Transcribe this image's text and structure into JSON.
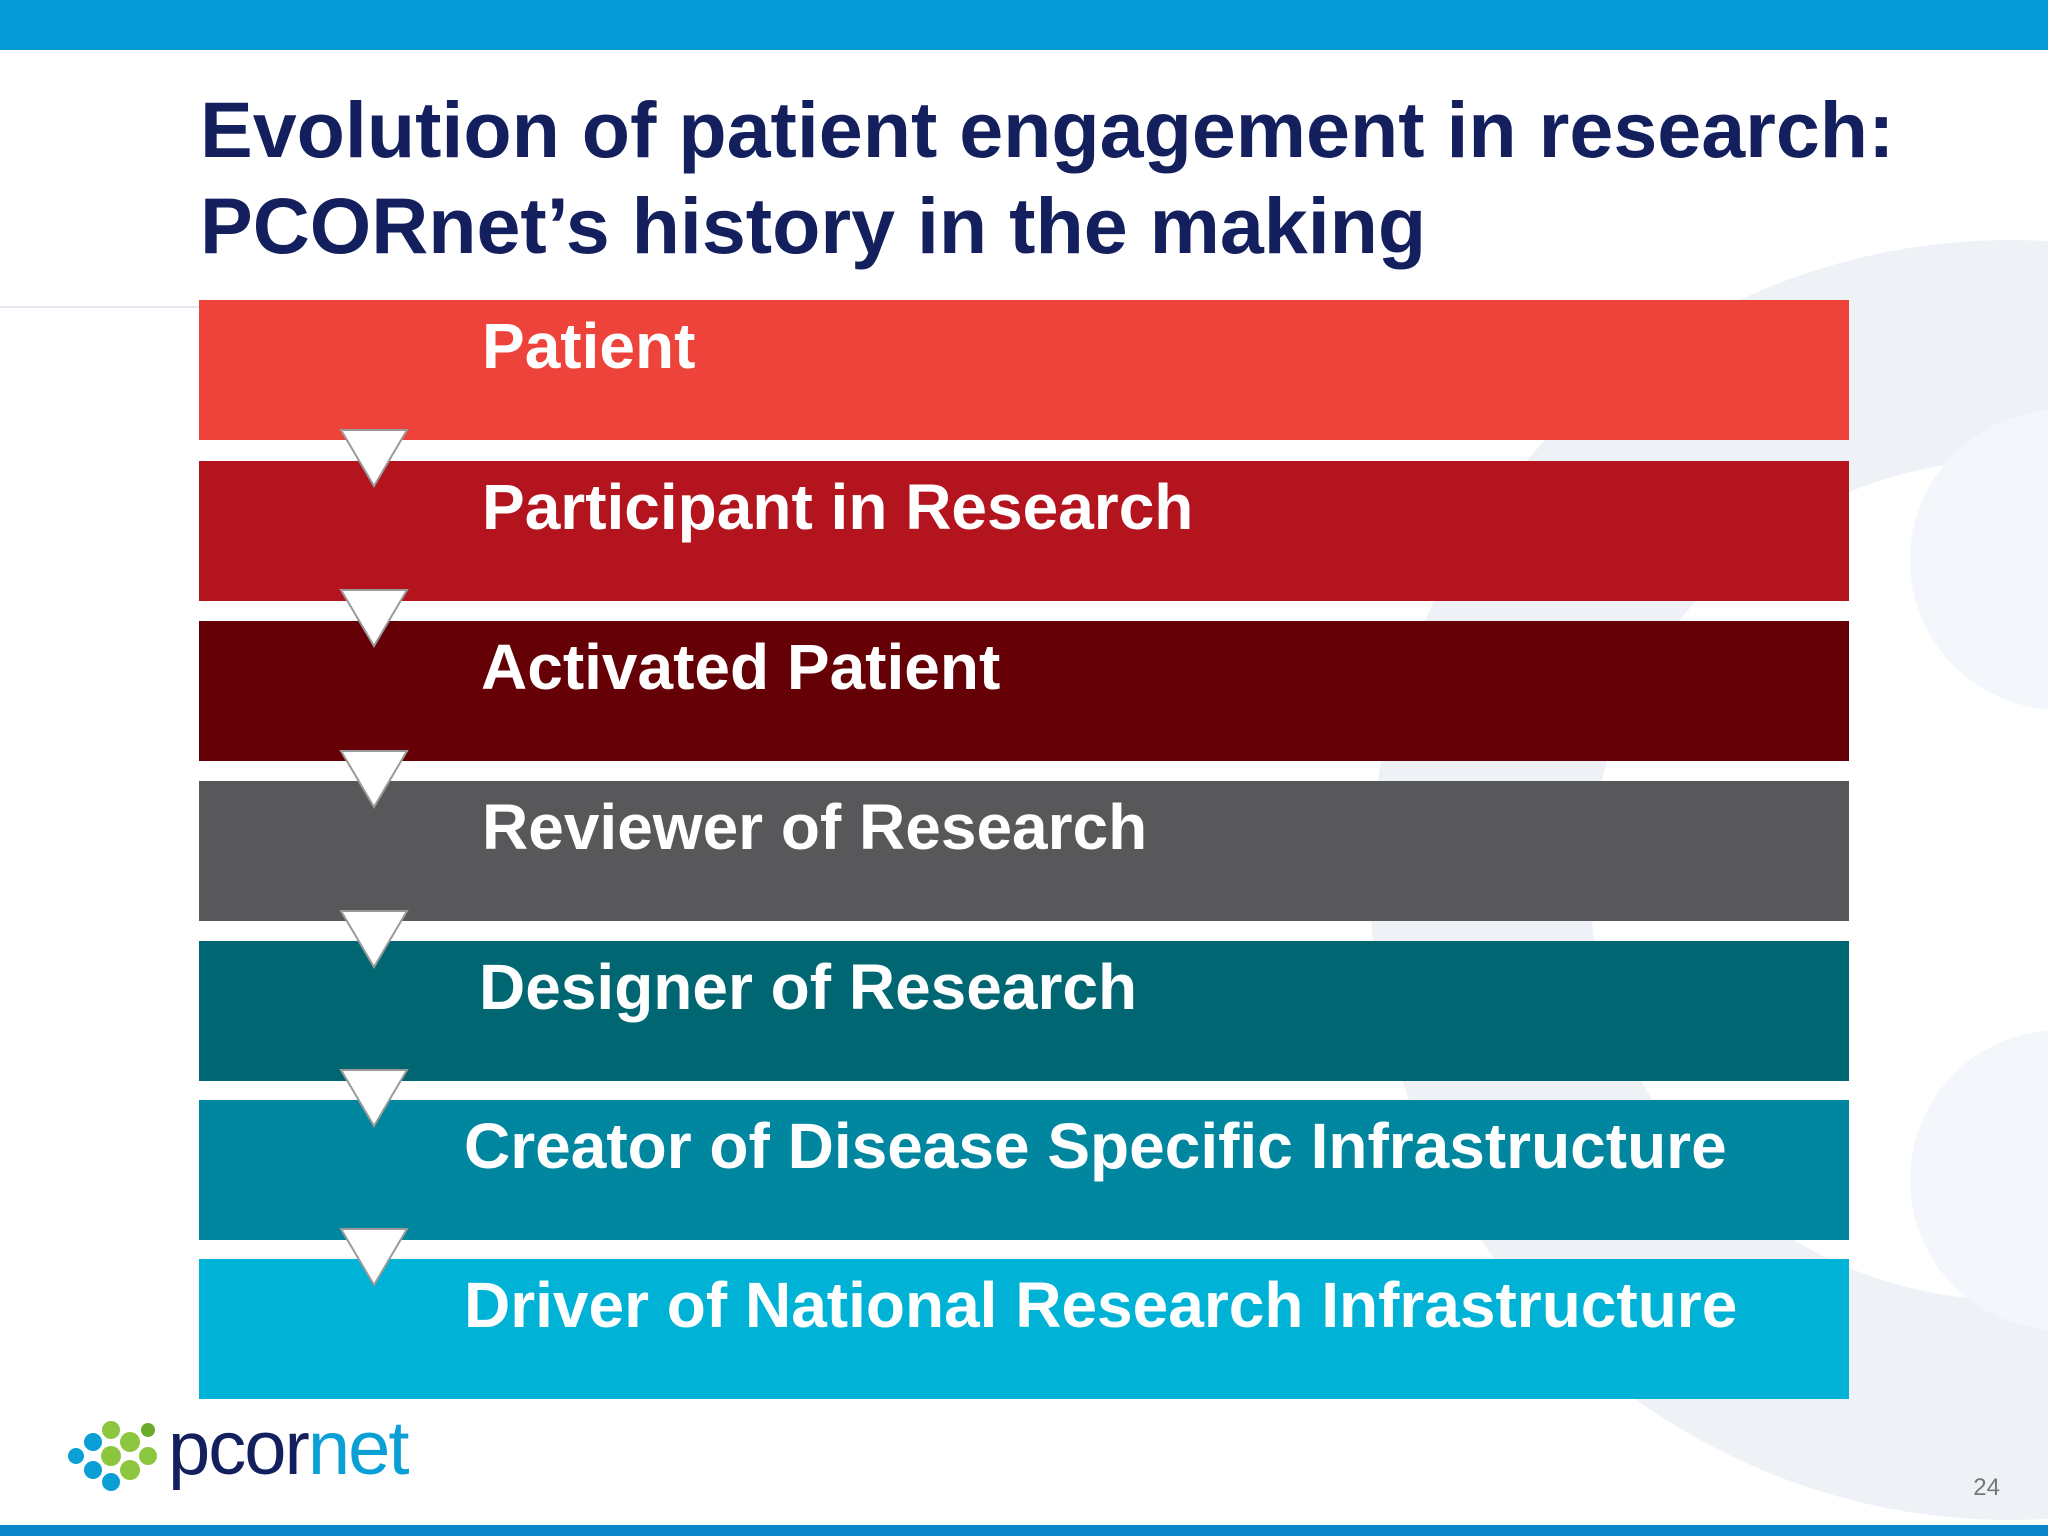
{
  "slide": {
    "title_line1": "Evolution of patient engagement in research:",
    "title_line2": "PCORnet’s history in the making",
    "page_number": "24"
  },
  "logo": {
    "text_part1": "pcor",
    "text_part2": "net",
    "name": "pcornet"
  },
  "stages": [
    {
      "label": "Patient",
      "color": "#ee433a"
    },
    {
      "label": "Participant in Research",
      "color": "#b3141e"
    },
    {
      "label": "Activated Patient",
      "color": "#650006"
    },
    {
      "label": "Reviewer of Research",
      "color": "#58585a"
    },
    {
      "label": "Designer of Research",
      "color": "#006672"
    },
    {
      "label": "Creator of Disease Specific Infrastructure",
      "color": "#00869f"
    },
    {
      "label": "Driver of National Research Infrastructure",
      "color": "#00b3d6"
    }
  ],
  "colors": {
    "title": "#14205e",
    "top_bar": "#049bd6",
    "bottom_bar": "#0a84c8",
    "arrow_fill": "#ffffff"
  }
}
